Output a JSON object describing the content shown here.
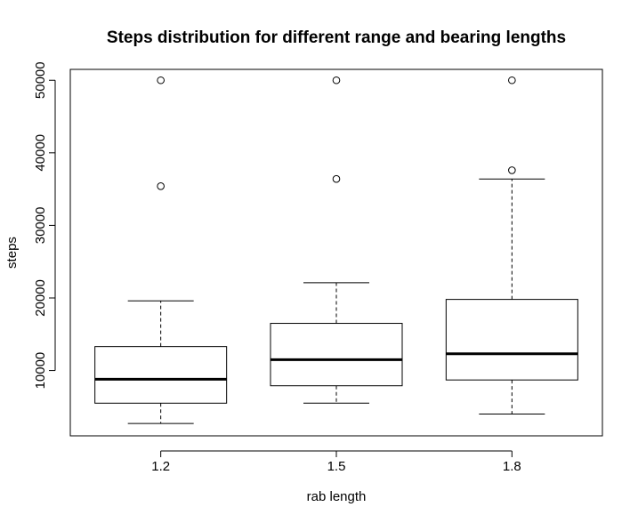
{
  "chart_data": {
    "type": "boxplot",
    "title": "Steps distribution for different range and bearing lengths",
    "xlabel": "rab length",
    "ylabel": "steps",
    "categories": [
      "1.2",
      "1.5",
      "1.8"
    ],
    "ylim": [
      1000,
      51500
    ],
    "yticks": [
      10000,
      20000,
      30000,
      40000,
      50000
    ],
    "yticklabels": [
      "10000",
      "20000",
      "30000",
      "40000",
      "50000"
    ],
    "grid": false,
    "boxes": [
      {
        "category": "1.2",
        "whisker_low": 2700,
        "q1": 5500,
        "median": 8800,
        "q3": 13300,
        "whisker_high": 19600,
        "outliers": [
          35400,
          50000
        ]
      },
      {
        "category": "1.5",
        "whisker_low": 5500,
        "q1": 7900,
        "median": 11500,
        "q3": 16500,
        "whisker_high": 22100,
        "outliers": [
          36400,
          50000
        ]
      },
      {
        "category": "1.8",
        "whisker_low": 4000,
        "q1": 8700,
        "median": 12300,
        "q3": 19800,
        "whisker_high": 36400,
        "outliers": [
          37600,
          50000
        ]
      }
    ]
  }
}
